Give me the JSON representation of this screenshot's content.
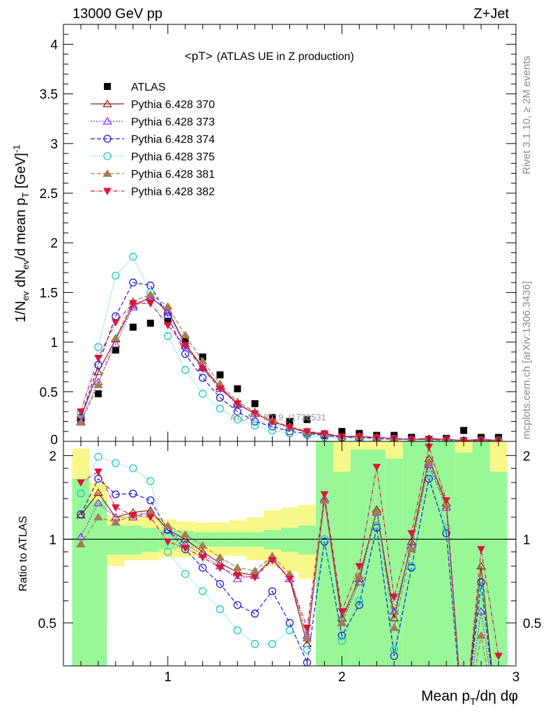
{
  "header": {
    "left": "13000 GeV pp",
    "right": "Z+Jet"
  },
  "side_labels": {
    "rivet": "Rivet 3.1.10, ≥ 2M events",
    "mcplots": "mcplots.cern.ch [arXiv:1306.3436]"
  },
  "colors": {
    "data": "#000000",
    "s370": "#8b1a1a",
    "s373": "#8a2be2",
    "s374": "#1c1cd6",
    "s375": "#20c8c0",
    "s381": "#a67c52",
    "s382": "#dc143c",
    "band_inner": "#98f898",
    "band_outer": "#f8f88a"
  },
  "chart_data": [
    {
      "type": "scatter",
      "panel": "main",
      "title": "<pT>",
      "title_suffix": "(ATLAS UE in Z production)",
      "ylabel": "1/N_ev dN_ev/d mean p_T [GeV]^-1",
      "ylim": [
        0,
        4.2
      ],
      "xlim": [
        0.4,
        3.0
      ],
      "yticks": [
        "0.5",
        "1",
        "1.5",
        "2",
        "2.5",
        "3",
        "3.5",
        "4"
      ],
      "yticks_values": [
        0.5,
        1,
        1.5,
        2,
        2.5,
        3,
        3.5,
        4
      ],
      "watermark": "ATLAS_2019_I1736531",
      "legend_position": "top-left",
      "x": [
        0.5,
        0.6,
        0.7,
        0.8,
        0.9,
        1.0,
        1.1,
        1.2,
        1.3,
        1.4,
        1.5,
        1.6,
        1.7,
        1.8,
        1.9,
        2.0,
        2.1,
        2.2,
        2.3,
        2.4,
        2.5,
        2.6,
        2.7,
        2.8,
        2.9
      ],
      "series": [
        {
          "name": "ATLAS",
          "key": "data",
          "marker": "square",
          "values": [
            0.2,
            0.48,
            0.92,
            1.15,
            1.19,
            1.21,
            1.03,
            0.85,
            0.67,
            0.53,
            0.38,
            0.24,
            0.2,
            0.22,
            0.06,
            0.1,
            0.08,
            0.06,
            0.06,
            0.04,
            0.02,
            0.03,
            0.11,
            0.04,
            0.04
          ]
        },
        {
          "name": "Pythia 6.428 370",
          "key": "s370",
          "marker": "tri_open",
          "dash": "",
          "values": [
            0.24,
            0.7,
            1.03,
            1.37,
            1.45,
            1.32,
            0.98,
            0.75,
            0.55,
            0.38,
            0.28,
            0.2,
            0.14,
            0.09,
            0.07,
            0.05,
            0.05,
            0.04,
            0.03,
            0.02,
            0.03,
            0.02,
            0.01,
            0.02,
            0.01
          ]
        },
        {
          "name": "Pythia 6.428 373",
          "key": "s373",
          "marker": "tri_open",
          "dash": "2,2",
          "values": [
            0.2,
            0.6,
            0.98,
            1.35,
            1.46,
            1.3,
            0.96,
            0.74,
            0.53,
            0.37,
            0.28,
            0.2,
            0.14,
            0.1,
            0.07,
            0.05,
            0.04,
            0.04,
            0.03,
            0.02,
            0.02,
            0.02,
            0.01,
            0.01,
            0.01
          ]
        },
        {
          "name": "Pythia 6.428 374",
          "key": "s374",
          "marker": "circle_open",
          "dash": "6,3",
          "values": [
            0.24,
            0.77,
            1.26,
            1.6,
            1.57,
            1.26,
            0.88,
            0.64,
            0.44,
            0.3,
            0.2,
            0.15,
            0.1,
            0.08,
            0.06,
            0.04,
            0.04,
            0.03,
            0.02,
            0.02,
            0.02,
            0.01,
            0.01,
            0.01,
            0.01
          ]
        },
        {
          "name": "Pythia 6.428 375",
          "key": "s375",
          "marker": "circle_open",
          "dash": "1,2",
          "values": [
            0.29,
            0.95,
            1.67,
            1.86,
            1.5,
            1.06,
            0.72,
            0.48,
            0.33,
            0.22,
            0.16,
            0.11,
            0.08,
            0.06,
            0.04,
            0.03,
            0.03,
            0.02,
            0.02,
            0.01,
            0.01,
            0.01,
            0.01,
            0.01,
            0.01
          ]
        },
        {
          "name": "Pythia 6.428 381",
          "key": "s381",
          "marker": "tri_filled",
          "dash": "6,3",
          "values": [
            0.19,
            0.57,
            1.04,
            1.41,
            1.48,
            1.36,
            1.07,
            0.81,
            0.58,
            0.4,
            0.3,
            0.21,
            0.15,
            0.1,
            0.08,
            0.05,
            0.05,
            0.04,
            0.03,
            0.02,
            0.02,
            0.02,
            0.01,
            0.01,
            0.01
          ]
        },
        {
          "name": "Pythia 6.428 382",
          "key": "s382",
          "marker": "tri_down_filled",
          "dash": "6,2,1,2",
          "values": [
            0.3,
            0.84,
            1.2,
            1.39,
            1.39,
            1.17,
            0.96,
            0.73,
            0.53,
            0.38,
            0.28,
            0.2,
            0.14,
            0.1,
            0.08,
            0.05,
            0.05,
            0.04,
            0.03,
            0.02,
            0.02,
            0.02,
            0.01,
            0.01,
            0.01
          ]
        }
      ]
    },
    {
      "type": "line",
      "panel": "ratio",
      "ylabel": "Ratio to ATLAS",
      "xlabel": "Mean p_T/dη dφ",
      "xlim": [
        0.4,
        3.0
      ],
      "ylim": [
        0.35,
        2.25
      ],
      "xticks": [
        "1",
        "2",
        "3"
      ],
      "xticks_values": [
        1,
        2,
        3
      ],
      "yticks": [
        "0.5",
        "1",
        "2"
      ],
      "yticks_values": [
        0.5,
        1,
        2
      ],
      "bands": {
        "edges": [
          0.45,
          0.55,
          0.65,
          0.75,
          0.85,
          0.95,
          1.05,
          1.15,
          1.25,
          1.35,
          1.45,
          1.55,
          1.65,
          1.75,
          1.85,
          1.95,
          2.05,
          2.15,
          2.25,
          2.35,
          2.45,
          2.55,
          2.65,
          2.75,
          2.85,
          2.95
        ],
        "inner_lo": [
          0.35,
          0.35,
          0.88,
          0.88,
          0.9,
          0.92,
          0.93,
          0.94,
          0.94,
          0.94,
          0.94,
          0.92,
          0.9,
          0.88,
          0.35,
          0.35,
          0.35,
          0.35,
          0.35,
          0.35,
          0.35,
          0.35,
          0.35,
          0.35,
          0.35
        ],
        "inner_hi": [
          1.65,
          1.38,
          1.12,
          1.12,
          1.1,
          1.08,
          1.07,
          1.06,
          1.06,
          1.06,
          1.06,
          1.08,
          1.1,
          1.12,
          2.25,
          1.75,
          2.1,
          2.1,
          1.95,
          2.25,
          2.25,
          2.25,
          2.05,
          2.25,
          1.75
        ],
        "outer_lo": [
          0.36,
          0.5,
          0.8,
          0.84,
          0.84,
          0.86,
          0.86,
          0.87,
          0.87,
          0.87,
          0.84,
          0.8,
          0.76,
          0.72,
          0.35,
          0.35,
          0.35,
          0.35,
          0.35,
          0.35,
          0.35,
          0.35,
          0.35,
          0.35,
          0.35
        ],
        "outer_hi": [
          2.12,
          1.6,
          1.22,
          1.2,
          1.2,
          1.18,
          1.16,
          1.15,
          1.15,
          1.17,
          1.2,
          1.27,
          1.3,
          1.33,
          2.25,
          2.25,
          2.25,
          2.25,
          2.25,
          2.25,
          2.25,
          2.25,
          2.25,
          2.25,
          2.25
        ]
      },
      "series": [
        {
          "name": "Pythia 6.428 370",
          "key": "s370",
          "marker": "tri_open",
          "dash": "",
          "values": [
            1.22,
            1.47,
            1.2,
            1.25,
            1.27,
            1.08,
            1.0,
            0.9,
            0.82,
            0.76,
            0.74,
            0.85,
            0.72,
            0.42,
            1.4,
            0.52,
            0.72,
            1.28,
            0.52,
            0.98,
            1.95,
            1.35,
            0.2,
            0.8,
            0.2
          ]
        },
        {
          "name": "Pythia 6.428 373",
          "key": "s373",
          "marker": "tri_open",
          "dash": "2,2",
          "values": [
            1.02,
            1.35,
            1.2,
            1.2,
            1.25,
            1.08,
            0.96,
            0.88,
            0.8,
            0.72,
            0.74,
            0.85,
            0.72,
            0.45,
            1.4,
            0.5,
            0.7,
            1.25,
            0.55,
            0.95,
            1.85,
            1.3,
            0.2,
            0.55,
            0.2
          ]
        },
        {
          "name": "Pythia 6.428 374",
          "key": "s374",
          "marker": "circle_open",
          "dash": "6,3",
          "values": [
            1.23,
            1.65,
            1.45,
            1.46,
            1.38,
            1.08,
            0.92,
            0.79,
            0.69,
            0.58,
            0.54,
            0.65,
            0.5,
            0.36,
            0.98,
            0.45,
            0.58,
            1.1,
            0.38,
            0.79,
            1.65,
            1.05,
            0.2,
            0.7,
            0.2
          ]
        },
        {
          "name": "Pythia 6.428 375",
          "key": "s375",
          "marker": "circle_open",
          "dash": "1,2",
          "values": [
            1.46,
            1.98,
            1.88,
            1.8,
            1.62,
            0.9,
            0.75,
            0.65,
            0.56,
            0.47,
            0.42,
            0.42,
            0.47,
            0.4,
            1.0,
            0.43,
            0.6,
            1.12,
            0.4,
            0.8,
            1.7,
            1.1,
            0.2,
            0.65,
            0.2
          ]
        },
        {
          "name": "Pythia 6.428 381",
          "key": "s381",
          "marker": "tri_filled",
          "dash": "6,3",
          "values": [
            0.96,
            1.2,
            1.15,
            1.22,
            1.25,
            1.12,
            1.04,
            0.95,
            0.86,
            0.79,
            0.77,
            0.87,
            0.75,
            0.44,
            1.38,
            0.5,
            0.74,
            1.26,
            0.48,
            0.92,
            1.9,
            1.32,
            0.2,
            0.45,
            0.2
          ]
        },
        {
          "name": "Pythia 6.428 382",
          "key": "s382",
          "marker": "tri_down_filled",
          "dash": "6,2,1,2",
          "values": [
            1.6,
            1.75,
            1.3,
            1.22,
            1.2,
            0.98,
            0.93,
            0.86,
            0.79,
            0.74,
            0.73,
            0.84,
            0.72,
            0.48,
            1.45,
            0.55,
            0.8,
            1.82,
            0.62,
            1.05,
            2.15,
            1.38,
            0.2,
            0.92,
            0.38
          ]
        }
      ]
    }
  ]
}
